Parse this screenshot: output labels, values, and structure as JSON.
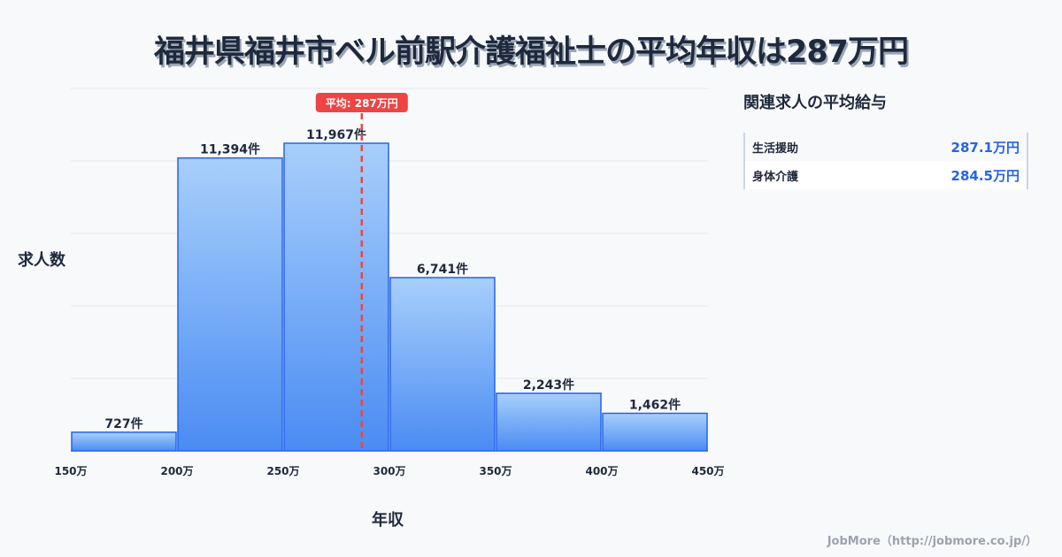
{
  "title": "福井県福井市ベル前駅介護福祉士の平均年収は287万円",
  "chart_data": {
    "type": "bar",
    "title": "福井県福井市ベル前駅介護福祉士の平均年収は287万円",
    "xlabel": "年収",
    "ylabel": "求人数",
    "bin_edges": [
      150,
      200,
      250,
      300,
      350,
      400,
      450
    ],
    "x_tick_labels": [
      "150万",
      "200万",
      "250万",
      "300万",
      "350万",
      "400万",
      "450万"
    ],
    "values": [
      727,
      11394,
      11967,
      6741,
      2243,
      1462
    ],
    "value_labels": [
      "727件",
      "11,394件",
      "11,967件",
      "6,741件",
      "2,243件",
      "1,462件"
    ],
    "ylim": [
      0,
      14100
    ],
    "grid": true,
    "average": {
      "value": 287,
      "label": "平均: 287万円",
      "color": "#ef4444"
    },
    "bar_color": "#3b82f6"
  },
  "panel": {
    "title": "関連求人の平均給与",
    "rows": [
      {
        "label": "生活援助",
        "value": "287.1万円"
      },
      {
        "label": "身体介護",
        "value": "284.5万円"
      }
    ]
  },
  "footer": "JobMore（http://jobmore.co.jp/）"
}
